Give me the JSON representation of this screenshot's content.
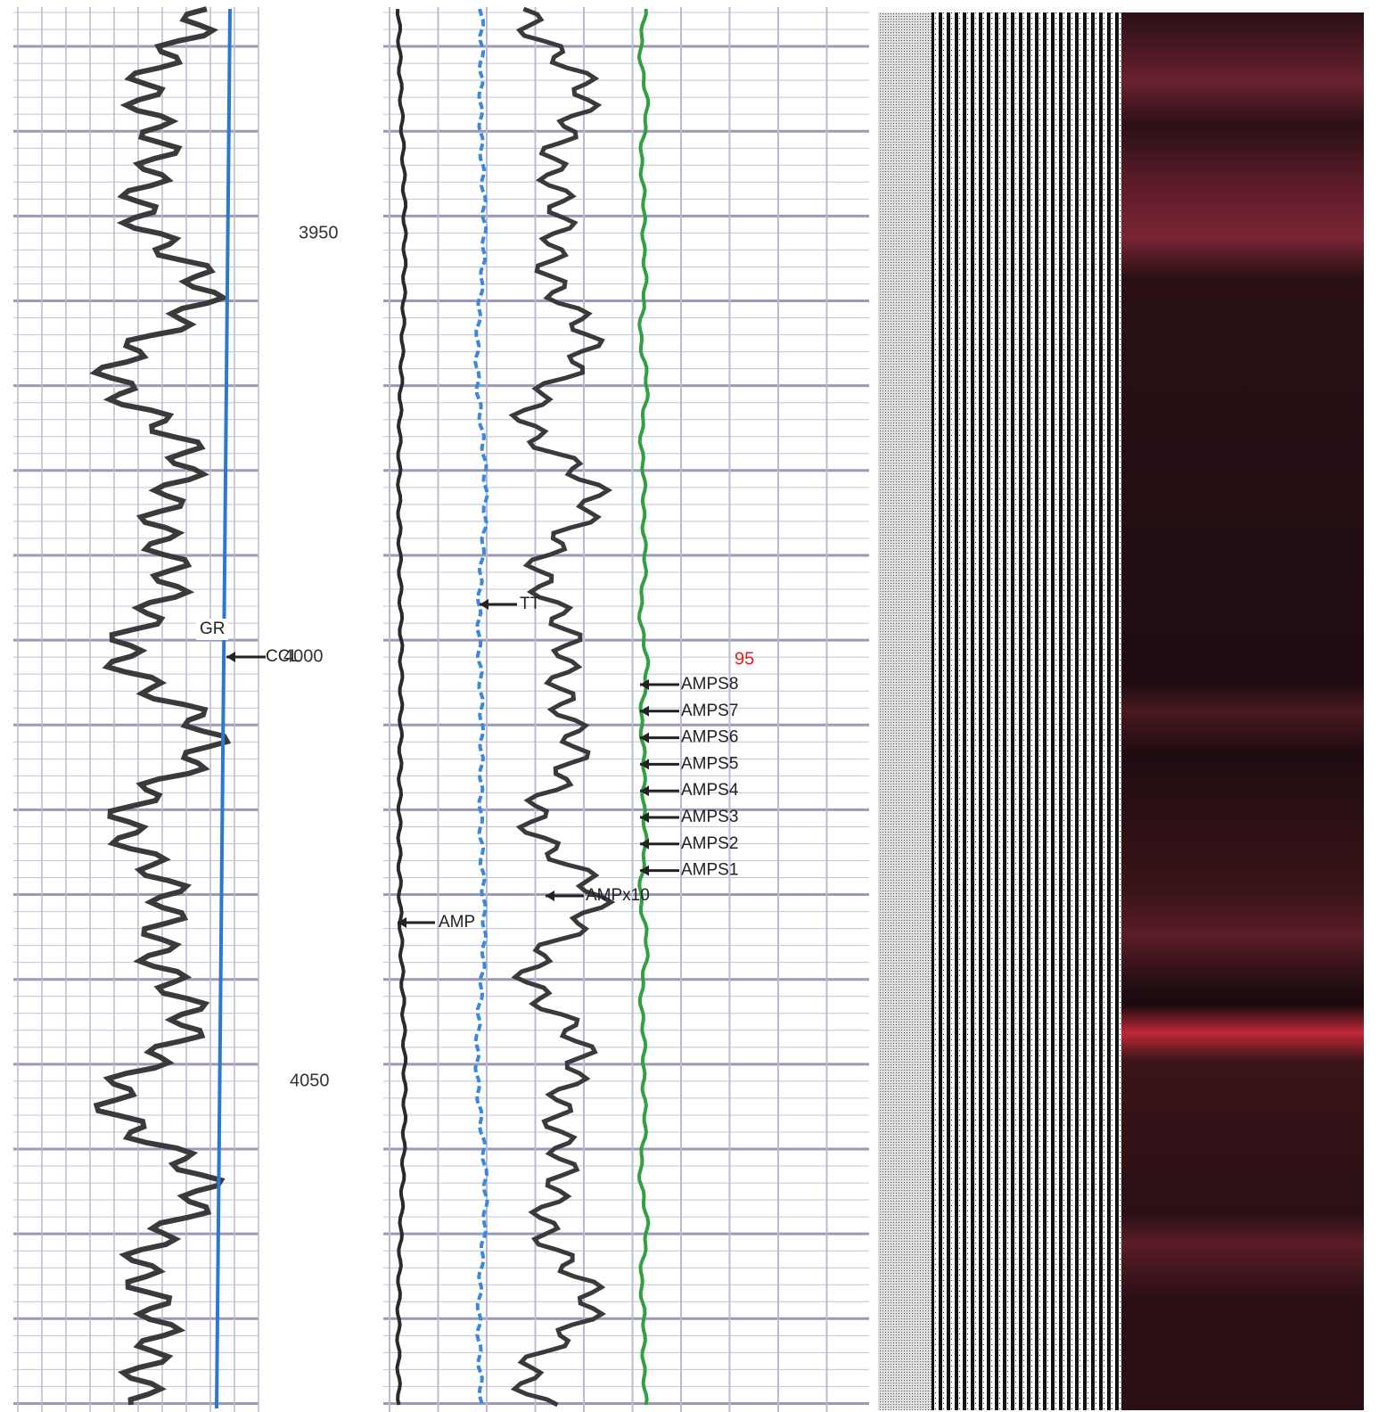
{
  "depth_labels": [
    "3950",
    "4000",
    "4050"
  ],
  "scale_label": "95",
  "curve_labels": {
    "gr": "GR",
    "ccl": "CCL",
    "tt": "TT",
    "amp": "AMP",
    "ampx10": "AMPx10",
    "amps": [
      "AMPS8",
      "AMPS7",
      "AMPS6",
      "AMPS5",
      "AMPS4",
      "AMPS3",
      "AMPS2",
      "AMPS1"
    ]
  }
}
